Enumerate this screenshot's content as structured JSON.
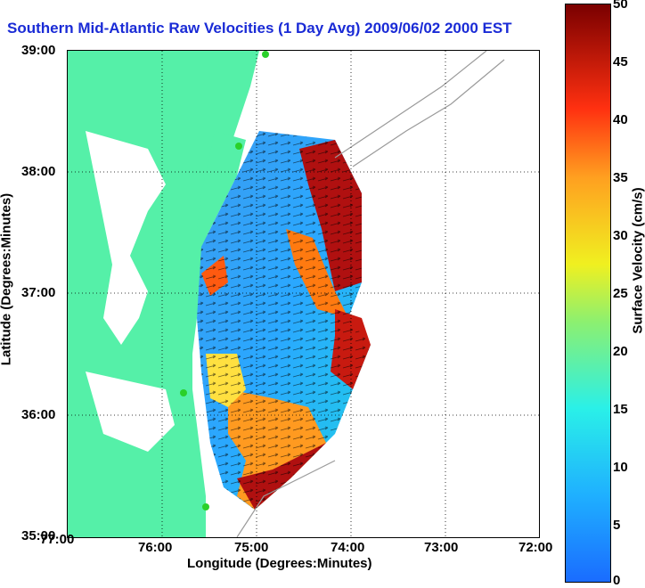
{
  "title": "Southern Mid-Atlantic Raw Velocities (1 Day Avg) 2009/06/02 2000 EST",
  "x_axis": {
    "label": "Longitude (Degrees:Minutes)",
    "ticks": [
      "77:00",
      "76:00",
      "75:00",
      "74:00",
      "73:00",
      "72:00"
    ]
  },
  "y_axis": {
    "label": "Latitude (Degrees:Minutes)",
    "ticks": [
      "39:00",
      "38:00",
      "37:00",
      "36:00",
      "35:00"
    ]
  },
  "colorbar": {
    "label": "Surface Velocity (cm/s)",
    "ticks": [
      "50",
      "45",
      "40",
      "35",
      "30",
      "25",
      "20",
      "15",
      "10",
      "5",
      "0"
    ],
    "range": [
      0,
      50
    ]
  },
  "colors": {
    "land": "#55f0a8",
    "title": "#1a2bd6",
    "coast_contour": "#9a9a9a"
  },
  "map_extent": {
    "lon": [
      -77,
      -72
    ],
    "lat": [
      35,
      39
    ]
  }
}
